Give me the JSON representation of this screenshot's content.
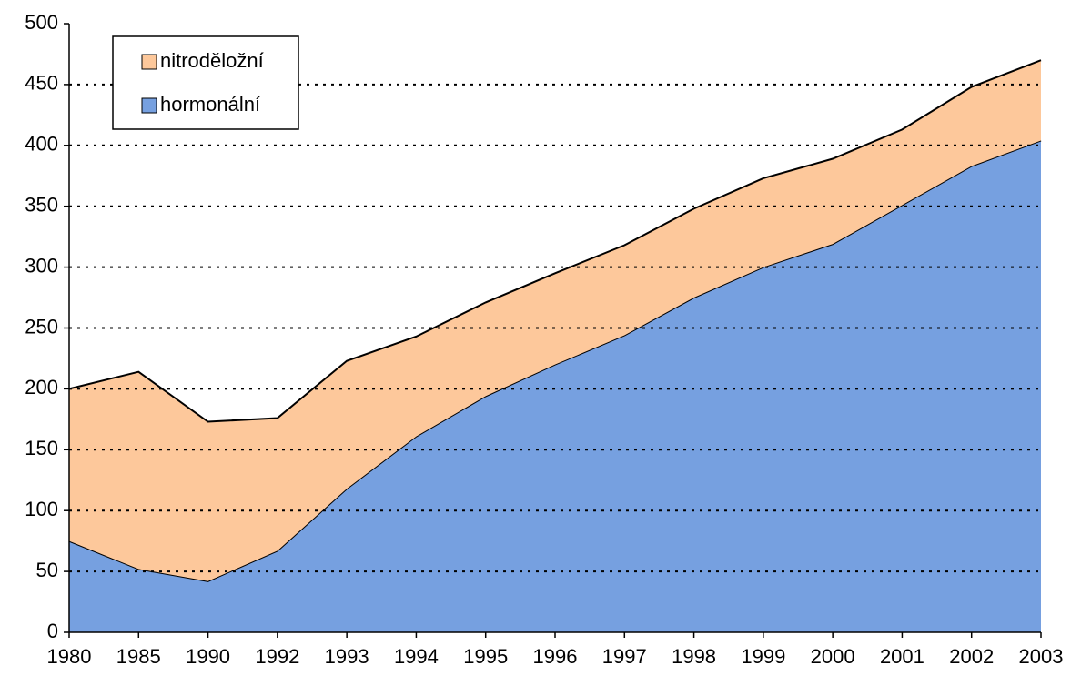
{
  "chart_data": {
    "type": "stacked_area",
    "categories": [
      "1980",
      "1985",
      "1990",
      "1992",
      "1993",
      "1994",
      "1995",
      "1996",
      "1997",
      "1998",
      "1999",
      "2000",
      "2001",
      "2002",
      "2003"
    ],
    "series": [
      {
        "name": "hormonální",
        "color": "#76a0e0",
        "values": [
          75,
          52,
          42,
          67,
          118,
          161,
          194,
          220,
          244,
          275,
          300,
          319,
          351,
          383,
          404
        ]
      },
      {
        "name": "nitroděložní",
        "color": "#fdc89b",
        "values": [
          125,
          162,
          131,
          109,
          105,
          82,
          77,
          75,
          74,
          73,
          73,
          70,
          62,
          65,
          66
        ]
      }
    ],
    "ylim": [
      0,
      500
    ],
    "yticks": [
      0,
      50,
      100,
      150,
      200,
      250,
      300,
      350,
      400,
      450,
      500
    ],
    "grid": true,
    "legend": "upper left"
  }
}
